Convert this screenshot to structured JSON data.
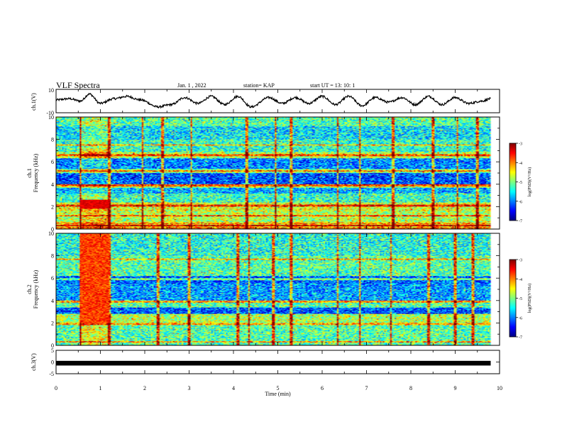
{
  "header": {
    "title": "VLF Spectra",
    "date": "Jan. 1 , 2022",
    "station": "station= KAP",
    "start": "start UT = 13: 10: 1"
  },
  "chart_data": [
    {
      "type": "line",
      "panel": "ch1-waveform",
      "ylabel": "ch.1(V)",
      "ylim": [
        -10,
        10
      ],
      "yticks": [
        "10",
        "-10"
      ],
      "xlim": [
        0,
        10
      ],
      "color": "#000000",
      "description_shape": "oscillating waveform approx. 1 cycle per 0.6 min, amplitude about 5 V",
      "series": [
        {
          "x": [
            0,
            0.3,
            0.55,
            0.75,
            1.0,
            1.3,
            1.6,
            1.9,
            2.3,
            2.6,
            2.9,
            3.2,
            3.5,
            3.8,
            4.1,
            4.4,
            4.8,
            5.1,
            5.4,
            5.7,
            6.0,
            6.3,
            6.6,
            6.9,
            7.2,
            7.5,
            7.8,
            8.1,
            8.4,
            8.7,
            9.0,
            9.3,
            9.6,
            9.8
          ],
          "values": [
            1,
            2,
            0,
            6,
            -2,
            2,
            4,
            1,
            -5,
            -3,
            3,
            -2,
            4,
            -3,
            4,
            -5,
            3,
            -2,
            3,
            -2,
            4,
            -3,
            4,
            -4,
            3,
            -1,
            3,
            -3,
            4,
            -3,
            3,
            -2,
            0,
            2
          ]
        }
      ]
    },
    {
      "type": "heatmap",
      "panel": "ch1-spectrogram",
      "ylabel": "ch.1 Frequency (kHz)",
      "ylim": [
        0,
        10
      ],
      "yticks": [
        "0",
        "2",
        "4",
        "6",
        "8",
        "10"
      ],
      "xlim": [
        0,
        9.8
      ],
      "colorbar": {
        "label": "log(PSD)(V²/Hz)",
        "range": [
          -7,
          -3
        ],
        "ticks": [
          "-3",
          "-4",
          "-5",
          "-6",
          "-7"
        ]
      },
      "bursts": [
        {
          "x": [
            0.55,
            1.2
          ],
          "note": "enhanced red band at 2–2.5 kHz and 6.5–7 kHz"
        }
      ],
      "vertical_spikes": [
        0.55,
        1.2,
        1.95,
        2.4,
        3.05,
        4.3,
        4.95,
        5.3,
        6.35,
        6.85,
        7.6,
        8.5,
        9.05,
        9.5
      ]
    },
    {
      "type": "heatmap",
      "panel": "ch2-spectrogram",
      "ylabel": "ch.2 Frequency (kHz)",
      "ylim": [
        0,
        10
      ],
      "yticks": [
        "0",
        "2",
        "4",
        "6",
        "8",
        "10"
      ],
      "xlim": [
        0,
        9.8
      ],
      "colorbar": {
        "label": "log(PSD)(V²/Hz)",
        "range": [
          -7,
          -3
        ],
        "ticks": [
          "-3",
          "-4",
          "-5",
          "-6",
          "-7"
        ]
      },
      "bursts": [
        {
          "x": [
            0.55,
            1.2
          ],
          "note": "strong red/orange band from 3 to 10 kHz"
        }
      ],
      "vertical_spikes": [
        0.55,
        1.2,
        2.3,
        3.0,
        4.1,
        4.35,
        4.9,
        5.3,
        6.35,
        6.85,
        7.55,
        8.4,
        9.0,
        9.4
      ]
    },
    {
      "type": "line",
      "panel": "ch3-waveform",
      "ylabel": "ch.3(V)",
      "ylim": [
        -5,
        5
      ],
      "yticks": [
        "5",
        "0",
        "-5"
      ],
      "xlim": [
        0,
        10
      ],
      "xlabel": "Time (min)",
      "xticks": [
        "0",
        "1",
        "2",
        "3",
        "4",
        "5",
        "6",
        "7",
        "8",
        "9",
        "10"
      ],
      "series": [
        {
          "x": [
            0,
            9.8
          ],
          "values": [
            -0.5,
            -0.5
          ],
          "thickness_note": "solid thick black band"
        }
      ]
    }
  ],
  "colors": {
    "jet": [
      "#00007f",
      "#0000ff",
      "#0080ff",
      "#00ffff",
      "#7fff7f",
      "#ffff00",
      "#ff8000",
      "#ff0000",
      "#7f0000"
    ]
  }
}
